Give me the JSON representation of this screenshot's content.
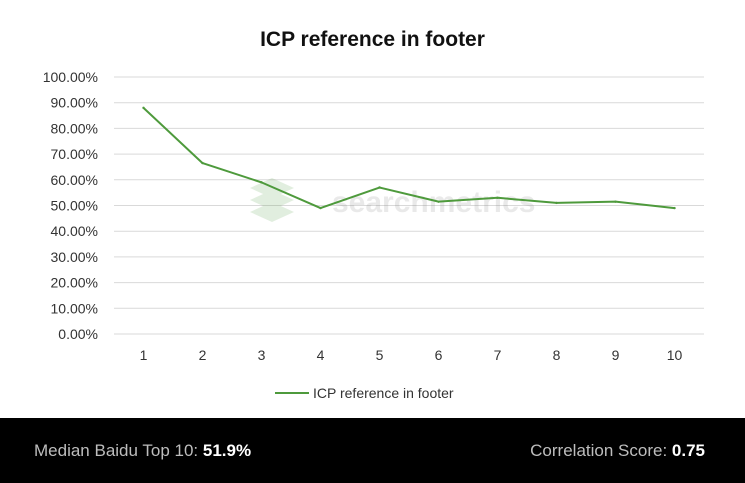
{
  "chart_data": {
    "type": "line",
    "title": "ICP reference in footer",
    "xlabel": "",
    "ylabel": "",
    "categories": [
      "1",
      "2",
      "3",
      "4",
      "5",
      "6",
      "7",
      "8",
      "9",
      "10"
    ],
    "series": [
      {
        "name": "ICP reference in footer",
        "values": [
          0.88,
          0.665,
          0.59,
          0.49,
          0.57,
          0.515,
          0.53,
          0.51,
          0.515,
          0.49
        ]
      }
    ],
    "ylim": [
      0,
      1
    ],
    "y_ticks": [
      "0.00%",
      "10.00%",
      "20.00%",
      "30.00%",
      "40.00%",
      "50.00%",
      "60.00%",
      "70.00%",
      "80.00%",
      "90.00%",
      "100.00%"
    ],
    "grid": true,
    "legend_position": "bottom",
    "colors": {
      "series": "#4e9a3c",
      "grid": "#d9d9d9"
    }
  },
  "watermark": {
    "text": "searchmetrics"
  },
  "footer": {
    "median_label": "Median Baidu Top 10:",
    "median_value": "51.9%",
    "correlation_label": "Correlation Score:",
    "correlation_value": "0.75"
  }
}
